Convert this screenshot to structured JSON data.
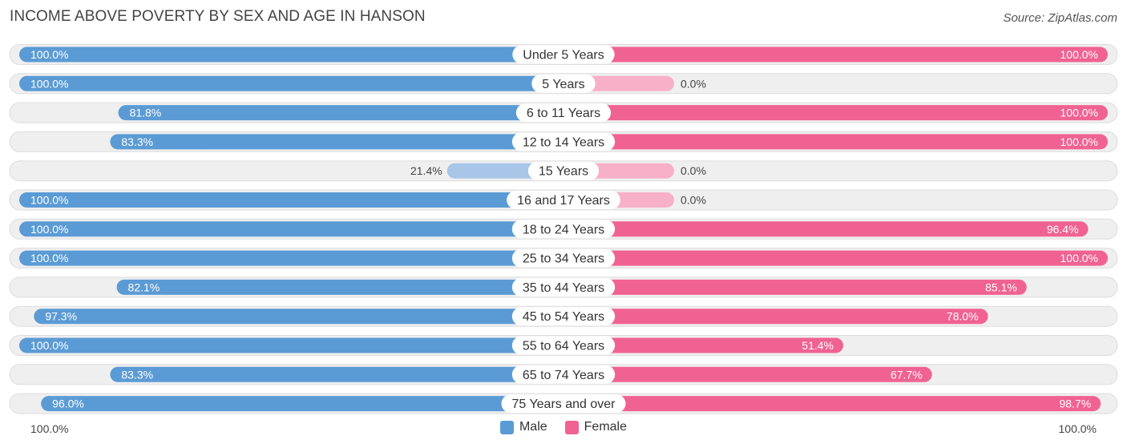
{
  "header": {
    "title": "INCOME ABOVE POVERTY BY SEX AND AGE IN HANSON",
    "source": "Source: ZipAtlas.com"
  },
  "colors": {
    "male": "#5b9bd5",
    "male_light": "#a7c6e8",
    "female": "#f06292",
    "female_light": "#f8b0c8",
    "row_bg": "#efefef",
    "row_border": "#dddddd"
  },
  "legend": {
    "male_label": "Male",
    "female_label": "Female"
  },
  "axis": {
    "left_label": "100.0%",
    "right_label": "100.0%"
  },
  "chart_data": {
    "type": "bar",
    "orientation": "horizontal-diverging",
    "title": "INCOME ABOVE POVERTY BY SEX AND AGE IN HANSON",
    "xlim": [
      -100,
      100
    ],
    "categories": [
      "Under 5 Years",
      "5 Years",
      "6 to 11 Years",
      "12 to 14 Years",
      "15 Years",
      "16 and 17 Years",
      "18 to 24 Years",
      "25 to 34 Years",
      "35 to 44 Years",
      "45 to 54 Years",
      "55 to 64 Years",
      "65 to 74 Years",
      "75 Years and over"
    ],
    "series": [
      {
        "name": "Male",
        "values": [
          100.0,
          100.0,
          81.8,
          83.3,
          21.4,
          100.0,
          100.0,
          100.0,
          82.1,
          97.3,
          100.0,
          83.3,
          96.0
        ],
        "labels": [
          "100.0%",
          "100.0%",
          "81.8%",
          "83.3%",
          "21.4%",
          "100.0%",
          "100.0%",
          "100.0%",
          "82.1%",
          "97.3%",
          "100.0%",
          "83.3%",
          "96.0%"
        ]
      },
      {
        "name": "Female",
        "values": [
          100.0,
          0.0,
          100.0,
          100.0,
          0.0,
          0.0,
          96.4,
          100.0,
          85.1,
          78.0,
          51.4,
          67.7,
          98.7
        ],
        "labels": [
          "100.0%",
          "0.0%",
          "100.0%",
          "100.0%",
          "0.0%",
          "0.0%",
          "96.4%",
          "100.0%",
          "85.1%",
          "78.0%",
          "51.4%",
          "67.7%",
          "98.7%"
        ]
      }
    ]
  }
}
